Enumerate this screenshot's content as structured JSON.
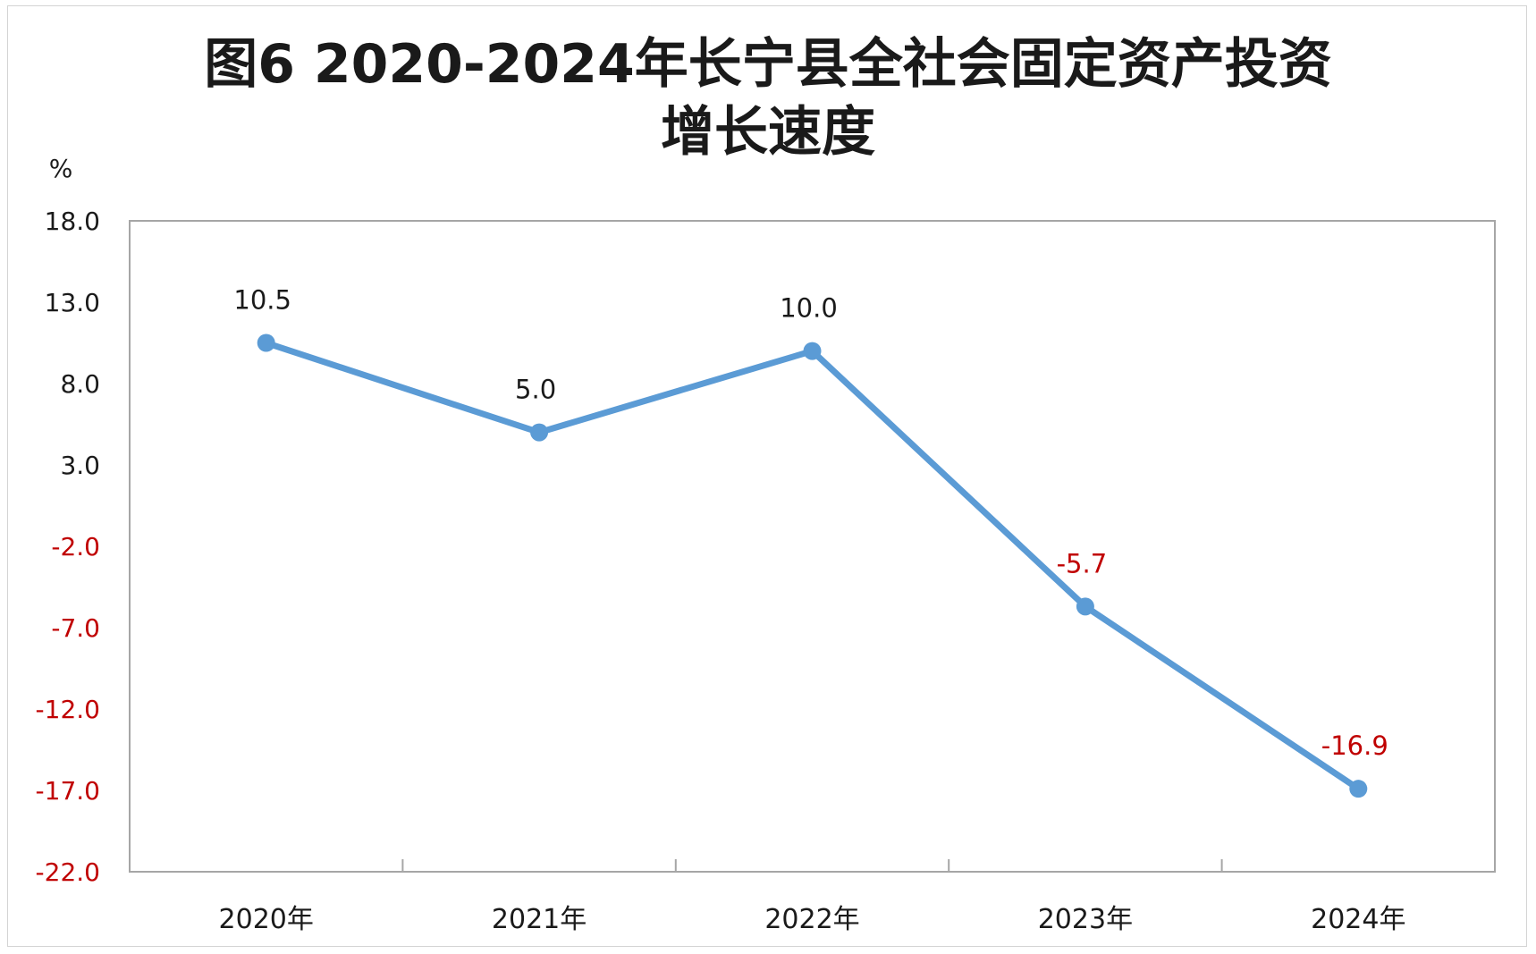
{
  "chart_data": {
    "type": "line",
    "title_line1": "图6  2020-2024年长宁县全社会固定资产投资",
    "title_line2": "增长速度",
    "ylabel": "%",
    "xlabel": "",
    "categories": [
      "2020年",
      "2021年",
      "2022年",
      "2023年",
      "2024年"
    ],
    "series": [
      {
        "values": [
          10.5,
          5.0,
          10.0,
          -5.7,
          -16.9
        ],
        "labels": [
          "10.5",
          "5.0",
          "10.0",
          "-5.7",
          "-16.9"
        ]
      }
    ],
    "ylim": [
      -22.0,
      18.0
    ],
    "yticks": [
      18.0,
      13.0,
      8.0,
      3.0,
      -2.0,
      -7.0,
      -12.0,
      -17.0,
      -22.0
    ],
    "ytick_labels": [
      "18.0",
      "13.0",
      "8.0",
      "3.0",
      "-2.0",
      "-7.0",
      "-12.0",
      "-17.0",
      "-22.0"
    ],
    "grid": false,
    "legend": "none",
    "colors": {
      "line": "#5b9bd5",
      "positive_text": "#1a1a1a",
      "negative_text": "#c00000",
      "axis": "#a6a6a6"
    }
  }
}
